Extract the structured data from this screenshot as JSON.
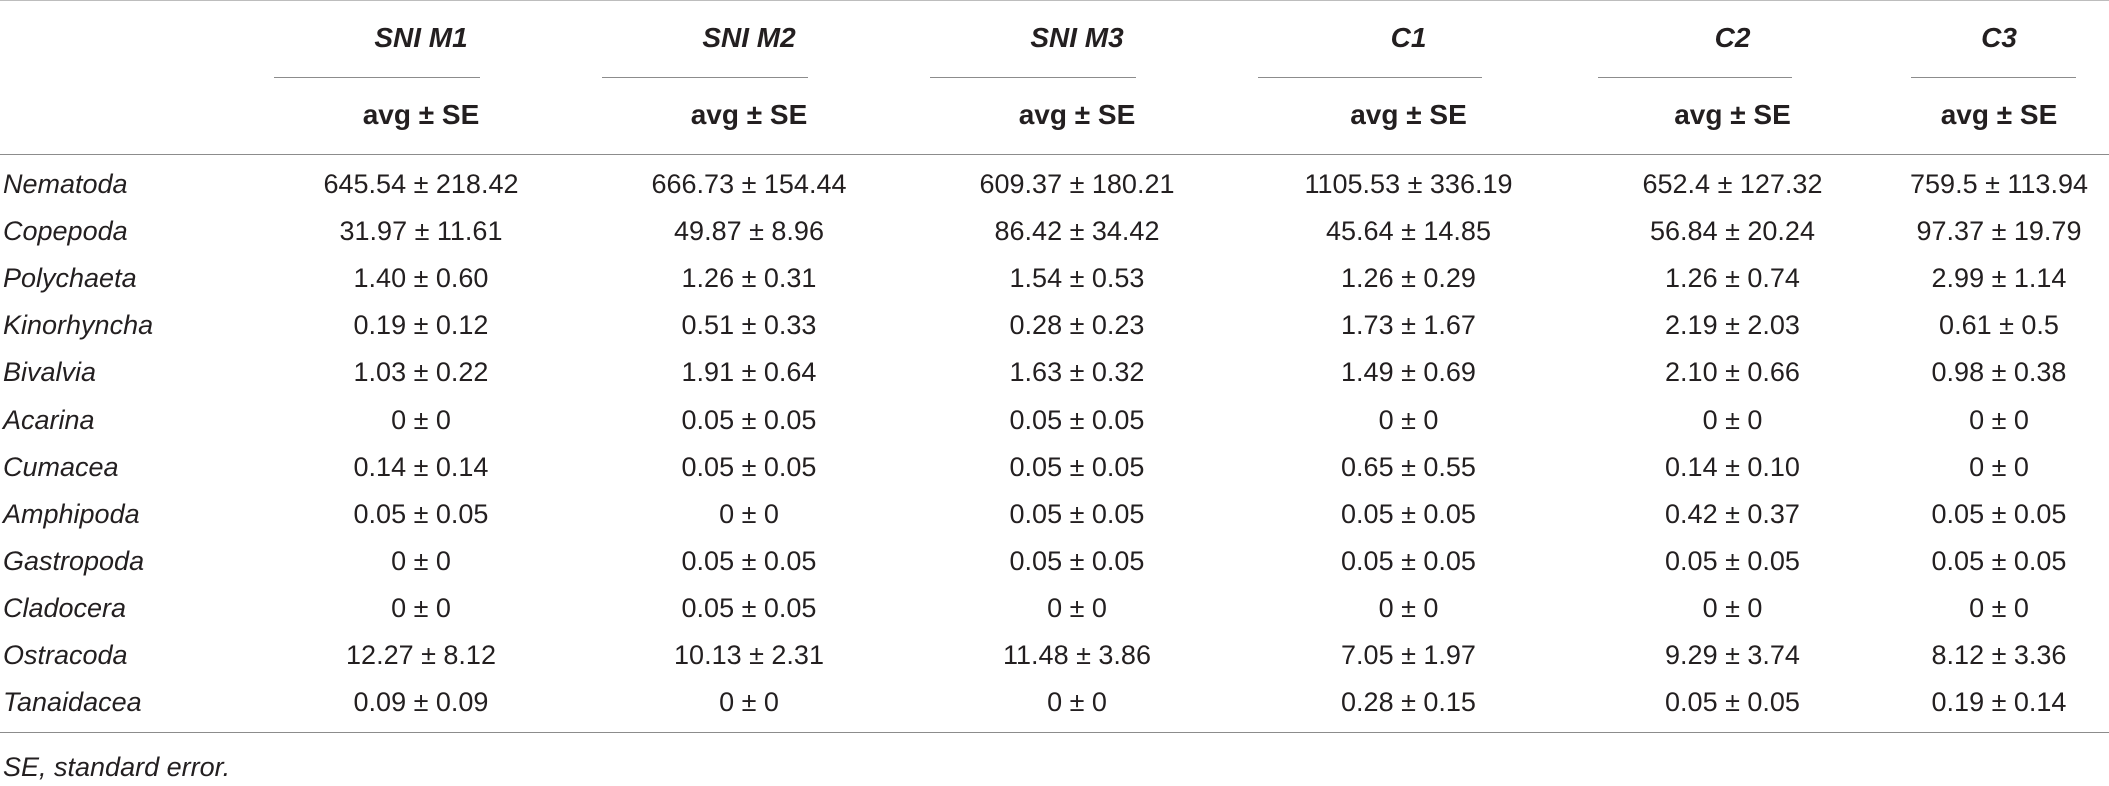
{
  "table": {
    "groups": [
      "SNI M1",
      "SNI M2",
      "SNI M3",
      "C1",
      "C2",
      "C3"
    ],
    "subheader": "avg ± SE",
    "rows": [
      {
        "taxon": "Nematoda",
        "values": [
          "645.54 ± 218.42",
          "666.73 ± 154.44",
          "609.37 ± 180.21",
          "1105.53 ± 336.19",
          "652.4 ± 127.32",
          "759.5 ± 113.94"
        ]
      },
      {
        "taxon": "Copepoda",
        "values": [
          "31.97 ± 11.61",
          "49.87 ± 8.96",
          "86.42 ± 34.42",
          "45.64 ± 14.85",
          "56.84 ± 20.24",
          "97.37 ± 19.79"
        ]
      },
      {
        "taxon": "Polychaeta",
        "values": [
          "1.40 ± 0.60",
          "1.26 ± 0.31",
          "1.54 ± 0.53",
          "1.26 ± 0.29",
          "1.26 ± 0.74",
          "2.99 ± 1.14"
        ]
      },
      {
        "taxon": "Kinorhyncha",
        "values": [
          "0.19 ± 0.12",
          "0.51 ± 0.33",
          "0.28 ± 0.23",
          "1.73 ± 1.67",
          "2.19 ± 2.03",
          "0.61 ± 0.5"
        ]
      },
      {
        "taxon": "Bivalvia",
        "values": [
          "1.03 ± 0.22",
          "1.91 ± 0.64",
          "1.63 ± 0.32",
          "1.49 ± 0.69",
          "2.10 ± 0.66",
          "0.98 ± 0.38"
        ]
      },
      {
        "taxon": "Acarina",
        "values": [
          "0 ± 0",
          "0.05 ± 0.05",
          "0.05 ± 0.05",
          "0 ± 0",
          "0 ± 0",
          "0 ± 0"
        ]
      },
      {
        "taxon": "Cumacea",
        "values": [
          "0.14 ± 0.14",
          "0.05 ± 0.05",
          "0.05 ± 0.05",
          "0.65 ± 0.55",
          "0.14 ± 0.10",
          "0 ± 0"
        ]
      },
      {
        "taxon": "Amphipoda",
        "values": [
          "0.05 ± 0.05",
          "0 ± 0",
          "0.05 ± 0.05",
          "0.05 ± 0.05",
          "0.42 ± 0.37",
          "0.05 ± 0.05"
        ]
      },
      {
        "taxon": "Gastropoda",
        "values": [
          "0 ± 0",
          "0.05 ± 0.05",
          "0.05 ± 0.05",
          "0.05 ± 0.05",
          "0.05 ± 0.05",
          "0.05 ± 0.05"
        ]
      },
      {
        "taxon": "Cladocera",
        "values": [
          "0 ± 0",
          "0.05 ± 0.05",
          "0 ± 0",
          "0 ± 0",
          "0 ± 0",
          "0 ± 0"
        ]
      },
      {
        "taxon": "Ostracoda",
        "values": [
          "12.27 ± 8.12",
          "10.13 ± 2.31",
          "11.48 ± 3.86",
          "7.05 ± 1.97",
          "9.29 ± 3.74",
          "8.12 ± 3.36"
        ]
      },
      {
        "taxon": "Tanaidacea",
        "values": [
          "0.09 ± 0.09",
          "0 ± 0",
          "0 ± 0",
          "0.28 ± 0.15",
          "0.05 ± 0.05",
          "0.19 ± 0.14"
        ]
      }
    ]
  },
  "footnote": "SE, standard error."
}
